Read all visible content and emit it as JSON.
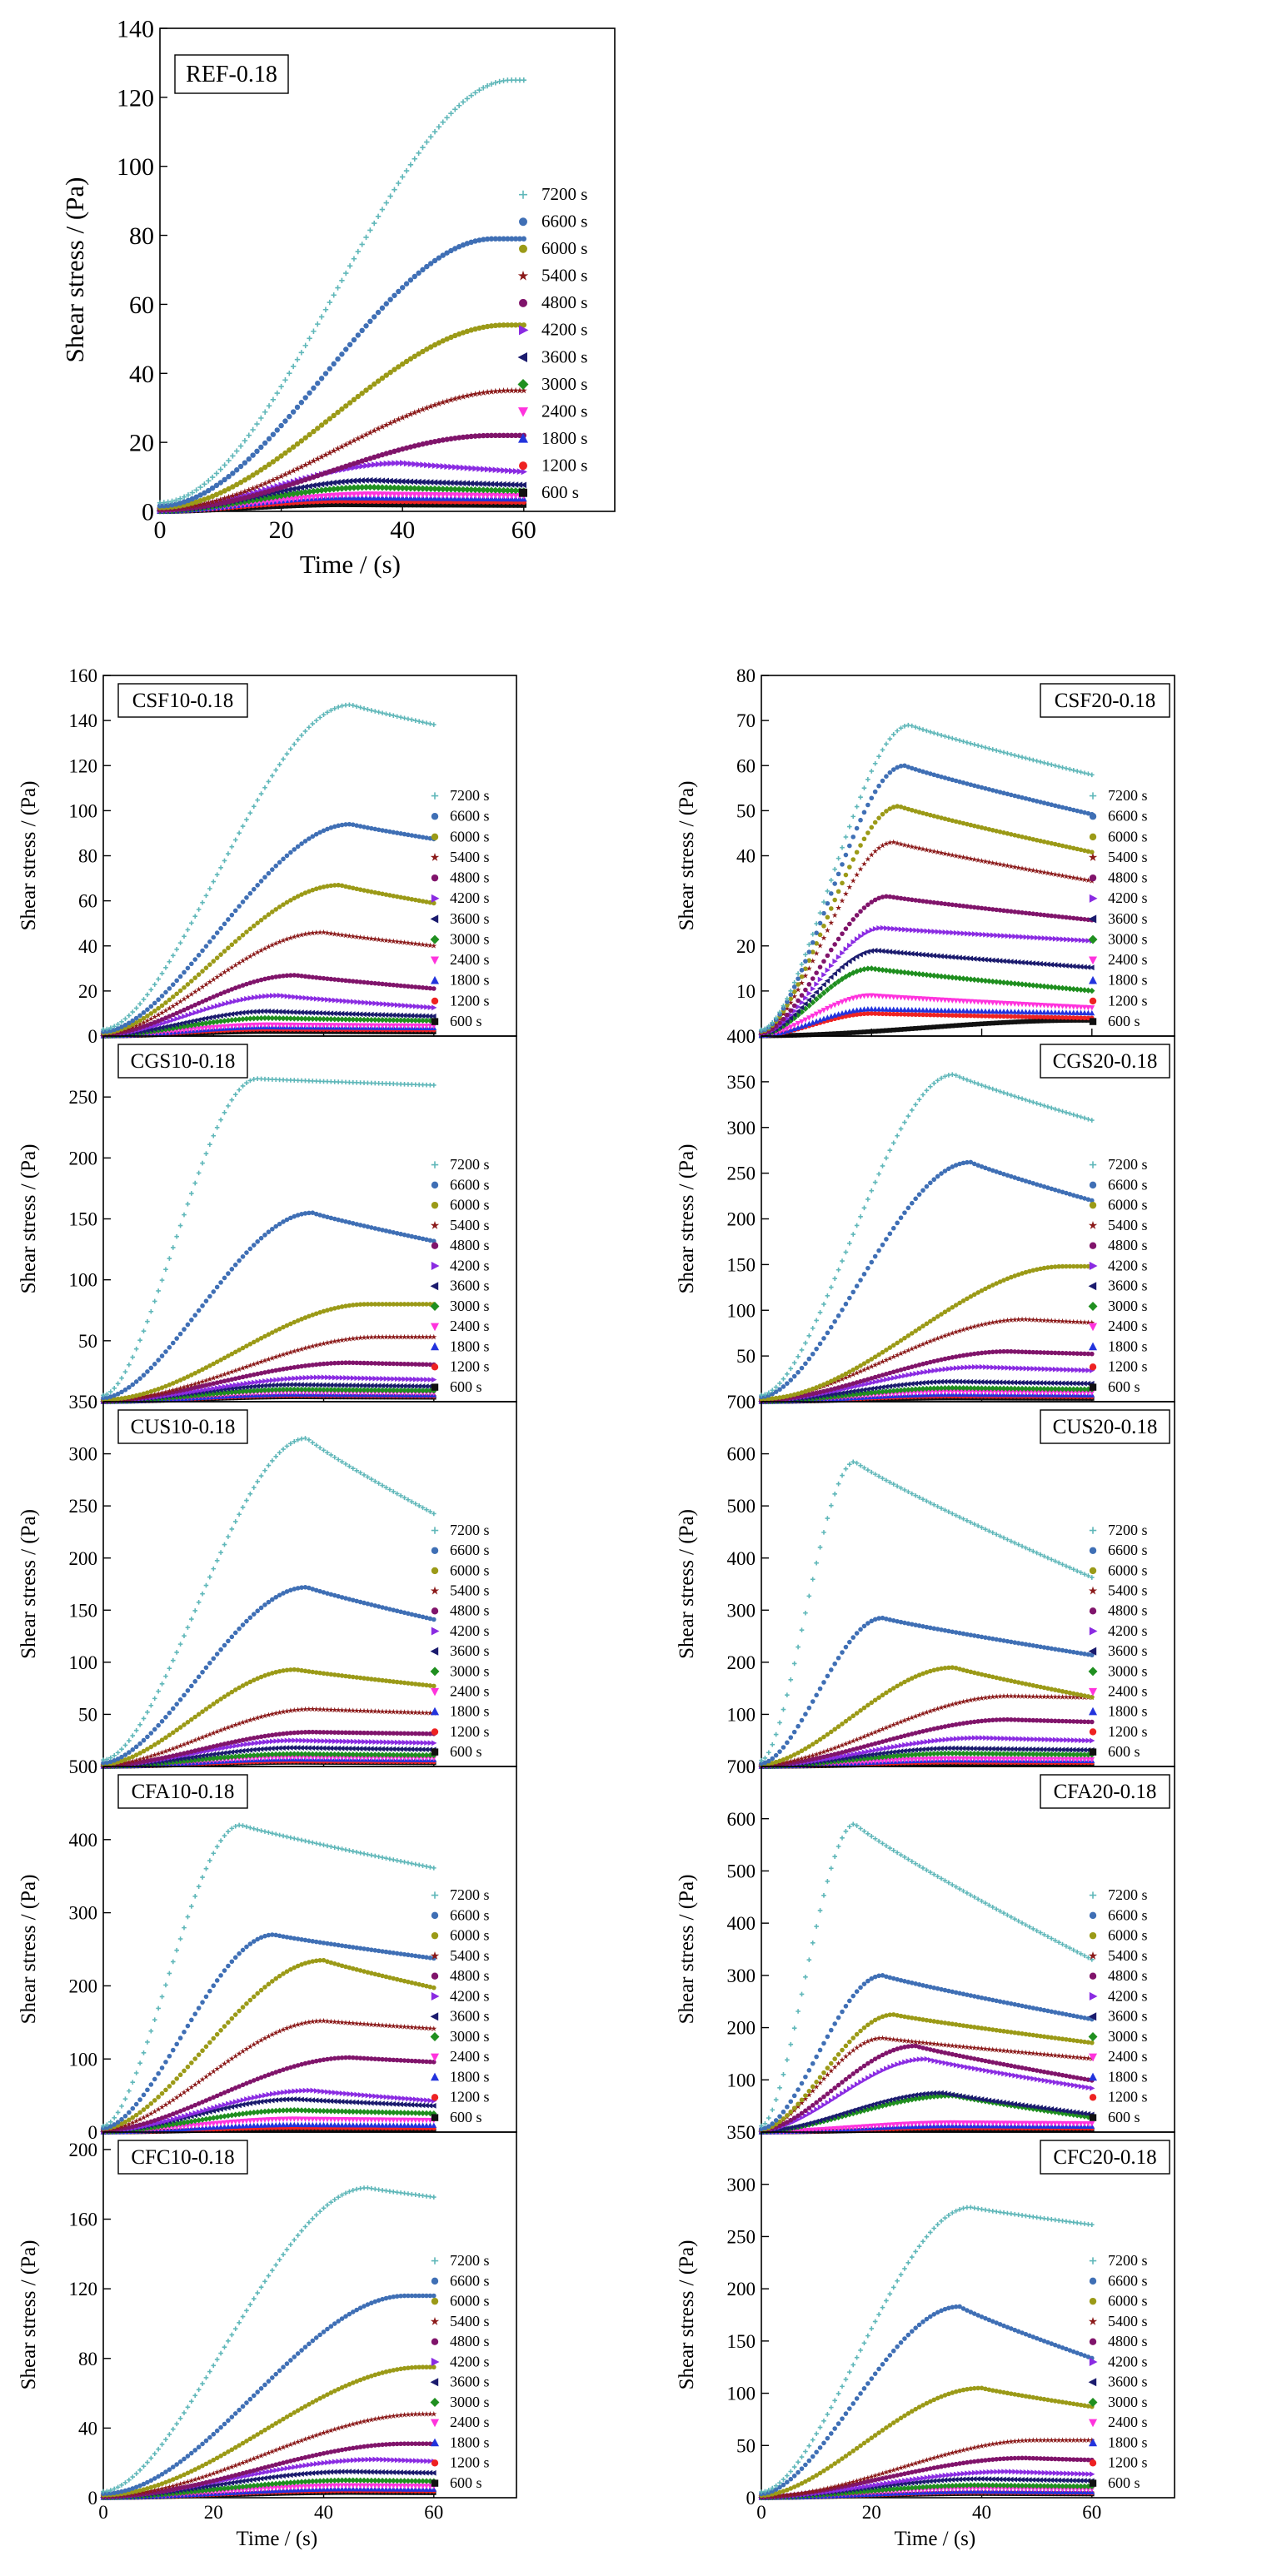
{
  "legend_entries": [
    "7200 s",
    "6600 s",
    "6000 s",
    "5400 s",
    "4800 s",
    "4200 s",
    "3600 s",
    "3000 s",
    "2400 s",
    "1800 s",
    "1200 s",
    "600 s"
  ],
  "series_colors": [
    "#5fb7b9",
    "#3f6fb5",
    "#9b9a17",
    "#8b1a1a",
    "#80146b",
    "#8a2be2",
    "#1b1b6e",
    "#1f8f1f",
    "#ff33dd",
    "#2233dd",
    "#ee2222",
    "#111111"
  ],
  "series_markers": [
    "plus",
    "circle",
    "circle",
    "star",
    "circle",
    "triangle-right",
    "triangle-left",
    "diamond",
    "triangle-down",
    "triangle-up",
    "circle",
    "square"
  ],
  "chart_data": [
    {
      "id": "REF",
      "type": "scatter",
      "panel_label": "REF-0.18",
      "xlabel": "Time / (s)",
      "ylabel": "Shear stress / (Pa)",
      "xlim": [
        0,
        75
      ],
      "ylim": [
        0,
        140
      ],
      "xticks": [
        0,
        20,
        40,
        60
      ],
      "yticks": [
        0,
        20,
        40,
        60,
        80,
        100,
        120,
        140
      ],
      "x_range": [
        0,
        60
      ],
      "peaks": [
        125,
        79,
        54,
        35,
        22,
        14,
        9,
        7,
        5,
        4,
        3,
        2
      ],
      "t_peak": [
        58,
        55,
        57,
        58,
        55,
        40,
        35,
        35,
        35,
        30,
        30,
        30
      ],
      "shape": [
        "sigmoid",
        "sigmoid",
        "sigmoid",
        "sigmoid",
        "sigmoid",
        "hump",
        "hump",
        "hump",
        "hump",
        "hump",
        "hump",
        "hump"
      ],
      "end_ratio": [
        1,
        0.99,
        1,
        1,
        1,
        0.82,
        0.85,
        0.85,
        0.9,
        0.9,
        0.9,
        0.9
      ]
    },
    {
      "id": "CSF10",
      "type": "scatter",
      "panel_label": "CSF10-0.18",
      "xlabel": "",
      "ylabel": "Shear stress / (Pa)",
      "xlim": [
        0,
        75
      ],
      "ylim": [
        0,
        160
      ],
      "xticks": [],
      "yticks": [
        0,
        20,
        40,
        60,
        80,
        100,
        120,
        140,
        160
      ],
      "x_range": [
        0,
        60
      ],
      "peaks": [
        147,
        94,
        67,
        46,
        27,
        18,
        11,
        8,
        5,
        4,
        3,
        2
      ],
      "t_peak": [
        45,
        45,
        43,
        40,
        35,
        32,
        30,
        30,
        30,
        30,
        30,
        30
      ],
      "shape": [
        "hump",
        "hump",
        "hump",
        "hump",
        "hump",
        "hump",
        "hump",
        "hump",
        "hump",
        "hump",
        "hump",
        "hump"
      ],
      "end_ratio": [
        0.94,
        0.93,
        0.88,
        0.87,
        0.78,
        0.7,
        0.8,
        0.85,
        0.9,
        0.9,
        0.9,
        0.9
      ]
    },
    {
      "id": "CSF20",
      "type": "scatter",
      "panel_label": "CSF20-0.18",
      "xlabel": "",
      "ylabel": "Shear stress / (Pa)",
      "xlim": [
        0,
        75
      ],
      "ylim": [
        0,
        80
      ],
      "xticks": [],
      "yticks": [
        0,
        10,
        20,
        40,
        50,
        60,
        70,
        80
      ],
      "x_range": [
        0,
        60
      ],
      "peaks": [
        69,
        60,
        51,
        43,
        31,
        24,
        19,
        15,
        9,
        6,
        5,
        3.5
      ],
      "t_peak": [
        27,
        26,
        25,
        24,
        23,
        22,
        21,
        20,
        20,
        20,
        20,
        58
      ],
      "shape": [
        "hump",
        "hump",
        "hump",
        "hump",
        "hump",
        "hump",
        "hump",
        "hump",
        "hump",
        "hump",
        "hump",
        "sigmoid"
      ],
      "end_ratio": [
        0.84,
        0.82,
        0.8,
        0.8,
        0.83,
        0.88,
        0.8,
        0.67,
        0.7,
        0.85,
        0.8,
        1
      ]
    },
    {
      "id": "CGS10",
      "type": "scatter",
      "panel_label": "CGS10-0.18",
      "xlabel": "",
      "ylabel": "Shear stress / (Pa)",
      "xlim": [
        0,
        75
      ],
      "ylim": [
        0,
        300
      ],
      "xticks": [],
      "yticks": [
        0,
        50,
        100,
        150,
        200,
        250
      ],
      "x_range": [
        0,
        60
      ],
      "peaks": [
        265,
        155,
        80,
        53,
        32,
        20,
        14,
        10,
        8,
        6,
        5,
        4
      ],
      "t_peak": [
        28,
        38,
        48,
        50,
        45,
        40,
        35,
        35,
        35,
        35,
        35,
        35
      ],
      "shape": [
        "hump",
        "hump",
        "sigmoid",
        "sigmoid",
        "hump",
        "hump",
        "hump",
        "hump",
        "hump",
        "hump",
        "hump",
        "hump"
      ],
      "end_ratio": [
        0.98,
        0.85,
        1,
        0.98,
        0.95,
        0.9,
        0.9,
        0.9,
        0.9,
        0.9,
        0.9,
        0.9
      ]
    },
    {
      "id": "CGS20",
      "type": "scatter",
      "panel_label": "CGS20-0.18",
      "xlabel": "",
      "ylabel": "Shear stress / (Pa)",
      "xlim": [
        0,
        75
      ],
      "ylim": [
        0,
        400
      ],
      "xticks": [],
      "yticks": [
        0,
        50,
        100,
        150,
        200,
        250,
        300,
        350,
        400
      ],
      "x_range": [
        0,
        60
      ],
      "peaks": [
        358,
        262,
        148,
        90,
        55,
        38,
        22,
        15,
        11,
        8,
        6,
        4
      ],
      "t_peak": [
        35,
        38,
        55,
        48,
        45,
        40,
        35,
        35,
        35,
        35,
        35,
        35
      ],
      "shape": [
        "hump",
        "hump",
        "sigmoid",
        "hump",
        "hump",
        "hump",
        "hump",
        "hump",
        "hump",
        "hump",
        "hump",
        "hump"
      ],
      "end_ratio": [
        0.86,
        0.84,
        1,
        0.96,
        0.95,
        0.9,
        0.9,
        0.9,
        0.9,
        0.9,
        0.9,
        0.9
      ]
    },
    {
      "id": "CUS10",
      "type": "scatter",
      "panel_label": "CUS10-0.18",
      "xlabel": "",
      "ylabel": "Shear stress / (Pa)",
      "xlim": [
        0,
        75
      ],
      "ylim": [
        0,
        350
      ],
      "xticks": [],
      "yticks": [
        0,
        50,
        100,
        150,
        200,
        250,
        300,
        350
      ],
      "x_range": [
        0,
        60
      ],
      "peaks": [
        315,
        172,
        93,
        55,
        33,
        25,
        18,
        12,
        9,
        7,
        5,
        4
      ],
      "t_peak": [
        37,
        37,
        35,
        38,
        38,
        35,
        35,
        35,
        35,
        35,
        35,
        35
      ],
      "shape": [
        "hump",
        "hump",
        "hump",
        "hump",
        "hump",
        "hump",
        "hump",
        "hump",
        "hump",
        "hump",
        "hump",
        "hump"
      ],
      "end_ratio": [
        0.77,
        0.82,
        0.83,
        0.93,
        0.95,
        0.9,
        0.9,
        0.9,
        0.9,
        0.9,
        0.9,
        0.9
      ]
    },
    {
      "id": "CUS20",
      "type": "scatter",
      "panel_label": "CUS20-0.18",
      "xlabel": "",
      "ylabel": "Shear stress / (Pa)",
      "xlim": [
        0,
        75
      ],
      "ylim": [
        0,
        700
      ],
      "xticks": [],
      "yticks": [
        0,
        100,
        200,
        300,
        400,
        500,
        600,
        700
      ],
      "x_range": [
        0,
        60
      ],
      "peaks": [
        585,
        285,
        190,
        135,
        90,
        55,
        35,
        25,
        15,
        12,
        8,
        5
      ],
      "t_peak": [
        17,
        22,
        35,
        45,
        45,
        40,
        35,
        35,
        35,
        35,
        35,
        35
      ],
      "shape": [
        "hump",
        "hump",
        "hump",
        "hump",
        "hump",
        "hump",
        "hump",
        "hump",
        "hump",
        "hump",
        "hump",
        "hump"
      ],
      "end_ratio": [
        0.62,
        0.75,
        0.7,
        0.98,
        0.95,
        0.9,
        0.9,
        0.9,
        0.9,
        0.9,
        0.9,
        0.9
      ]
    },
    {
      "id": "CFA10",
      "type": "scatter",
      "panel_label": "CFA10-0.18",
      "xlabel": "",
      "ylabel": "Shear stress / (Pa)",
      "xlim": [
        0,
        75
      ],
      "ylim": [
        0,
        500
      ],
      "xticks": [],
      "yticks": [
        0,
        100,
        200,
        300,
        400,
        500
      ],
      "x_range": [
        0,
        60
      ],
      "peaks": [
        420,
        270,
        235,
        152,
        102,
        57,
        45,
        30,
        18,
        10,
        6,
        4
      ],
      "t_peak": [
        25,
        31,
        40,
        40,
        45,
        38,
        35,
        35,
        35,
        35,
        35,
        35
      ],
      "shape": [
        "hump",
        "hump",
        "hump",
        "hump",
        "hump",
        "hump",
        "hump",
        "hump",
        "hump",
        "hump",
        "hump",
        "hump"
      ],
      "end_ratio": [
        0.86,
        0.88,
        0.84,
        0.93,
        0.94,
        0.75,
        0.8,
        0.85,
        0.9,
        0.9,
        0.9,
        0.9
      ]
    },
    {
      "id": "CFA20",
      "type": "scatter",
      "panel_label": "CFA20-0.18",
      "xlabel": "",
      "ylabel": "Shear stress / (Pa)",
      "xlim": [
        0,
        75
      ],
      "ylim": [
        0,
        700
      ],
      "xticks": [],
      "yticks": [
        0,
        100,
        200,
        300,
        400,
        500,
        600,
        700
      ],
      "x_range": [
        0,
        60
      ],
      "peaks": [
        590,
        300,
        225,
        180,
        165,
        140,
        75,
        70,
        18,
        12,
        8,
        5
      ],
      "t_peak": [
        17,
        22,
        24,
        22,
        28,
        30,
        33,
        35,
        35,
        35,
        35,
        35
      ],
      "shape": [
        "hump",
        "hump",
        "hump",
        "hump",
        "hump",
        "hump",
        "hump",
        "hump",
        "hump",
        "hump",
        "hump",
        "hump"
      ],
      "end_ratio": [
        0.56,
        0.72,
        0.76,
        0.78,
        0.6,
        0.6,
        0.45,
        0.4,
        0.9,
        0.9,
        0.9,
        0.9
      ]
    },
    {
      "id": "CFC10",
      "type": "scatter",
      "panel_label": "CFC10-0.18",
      "xlabel": "Time / (s)",
      "ylabel": "Shear stress / (Pa)",
      "xlim": [
        0,
        75
      ],
      "ylim": [
        0,
        210
      ],
      "xticks": [
        0,
        20,
        40,
        60
      ],
      "yticks": [
        0,
        40,
        80,
        120,
        160,
        200
      ],
      "x_range": [
        0,
        60
      ],
      "peaks": [
        178,
        116,
        75,
        48,
        31,
        22,
        15,
        10,
        7,
        5,
        4,
        3
      ],
      "t_peak": [
        48,
        55,
        58,
        58,
        55,
        50,
        45,
        45,
        45,
        45,
        45,
        45
      ],
      "shape": [
        "hump",
        "sigmoid",
        "sigmoid",
        "sigmoid",
        "sigmoid",
        "hump",
        "hump",
        "hump",
        "hump",
        "hump",
        "hump",
        "hump"
      ],
      "end_ratio": [
        0.97,
        1,
        1,
        1,
        1,
        0.95,
        0.95,
        0.95,
        0.95,
        0.95,
        0.95,
        0.95
      ]
    },
    {
      "id": "CFC20",
      "type": "scatter",
      "panel_label": "CFC20-0.18",
      "xlabel": "Time / (s)",
      "ylabel": "Shear stress / (Pa)",
      "xlim": [
        0,
        75
      ],
      "ylim": [
        0,
        350
      ],
      "xticks": [
        0,
        20,
        40,
        60
      ],
      "yticks": [
        0,
        50,
        100,
        150,
        200,
        250,
        300,
        350
      ],
      "x_range": [
        0,
        60
      ],
      "peaks": [
        278,
        183,
        105,
        55,
        38,
        25,
        18,
        12,
        9,
        6,
        5,
        4
      ],
      "t_peak": [
        38,
        36,
        40,
        50,
        48,
        45,
        40,
        40,
        40,
        40,
        40,
        40
      ],
      "shape": [
        "hump",
        "hump",
        "hump",
        "sigmoid",
        "hump",
        "hump",
        "hump",
        "hump",
        "hump",
        "hump",
        "hump",
        "hump"
      ],
      "end_ratio": [
        0.94,
        0.73,
        0.83,
        1,
        0.95,
        0.9,
        0.9,
        0.9,
        0.9,
        0.9,
        0.9,
        0.9
      ]
    }
  ]
}
